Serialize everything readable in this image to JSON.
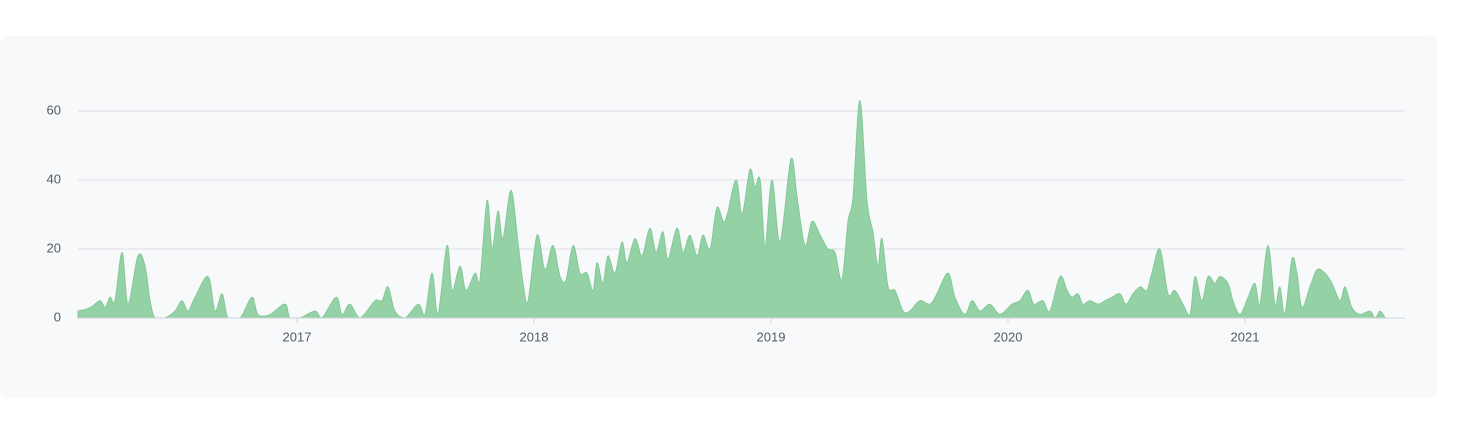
{
  "chart_data": {
    "type": "area",
    "color": "#94d2a5",
    "x": [
      2016.076,
      2016.127,
      2016.169,
      2016.19,
      2016.211,
      2016.232,
      2016.262,
      2016.287,
      2016.329,
      2016.359,
      2016.38,
      2016.401,
      2016.443,
      2016.485,
      2016.515,
      2016.54,
      2016.57,
      2016.625,
      2016.654,
      2016.684,
      2016.709,
      2016.76,
      2016.81,
      2016.835,
      2016.886,
      2016.949,
      2016.97,
      2017.013,
      2017.076,
      2017.105,
      2017.165,
      2017.19,
      2017.224,
      2017.266,
      2017.329,
      2017.359,
      2017.384,
      2017.413,
      2017.456,
      2017.511,
      2017.54,
      2017.57,
      2017.595,
      2017.633,
      2017.654,
      2017.688,
      2017.713,
      2017.751,
      2017.772,
      2017.802,
      2017.823,
      2017.848,
      2017.869,
      2017.903,
      2017.932,
      2017.954,
      2017.975,
      2018.013,
      2018.046,
      2018.08,
      2018.11,
      2018.135,
      2018.165,
      2018.194,
      2018.224,
      2018.249,
      2018.266,
      2018.291,
      2018.312,
      2018.342,
      2018.371,
      2018.392,
      2018.426,
      2018.456,
      2018.489,
      2018.515,
      2018.544,
      2018.565,
      2018.603,
      2018.629,
      2018.658,
      2018.688,
      2018.713,
      2018.743,
      2018.772,
      2018.806,
      2018.852,
      2018.878,
      2018.911,
      2018.932,
      2018.954,
      2018.975,
      2019.004,
      2019.038,
      2019.084,
      2019.11,
      2019.143,
      2019.173,
      2019.207,
      2019.24,
      2019.27,
      2019.299,
      2019.325,
      2019.346,
      2019.375,
      2019.405,
      2019.43,
      2019.451,
      2019.468,
      2019.494,
      2019.523,
      2019.557,
      2019.586,
      2019.628,
      2019.671,
      2019.7,
      2019.747,
      2019.776,
      2019.818,
      2019.848,
      2019.882,
      2019.924,
      2019.966,
      2020.017,
      2020.05,
      2020.084,
      2020.109,
      2020.147,
      2020.177,
      2020.219,
      2020.249,
      2020.27,
      2020.295,
      2020.316,
      2020.346,
      2020.38,
      2020.409,
      2020.439,
      2020.472,
      2020.498,
      2020.527,
      2020.557,
      2020.586,
      2020.607,
      2020.641,
      2020.675,
      2020.704,
      2020.738,
      2020.768,
      2020.789,
      2020.818,
      2020.844,
      2020.873,
      2020.894,
      2020.928,
      2020.949,
      2020.979,
      2021.013,
      2021.042,
      2021.063,
      2021.097,
      2021.126,
      2021.147,
      2021.168,
      2021.198,
      2021.219,
      2021.24,
      2021.274,
      2021.304,
      2021.337,
      2021.367,
      2021.401,
      2021.422,
      2021.451,
      2021.485,
      2021.527,
      2021.549,
      2021.57,
      2021.591
    ],
    "values": [
      2,
      3,
      5,
      3,
      6,
      5,
      19,
      4,
      18,
      15,
      5,
      0,
      0,
      2,
      5,
      2,
      6,
      12,
      2,
      7,
      0,
      0,
      6,
      1,
      1,
      4,
      0,
      0,
      2,
      0,
      6,
      1,
      4,
      0,
      5,
      5,
      9,
      2,
      0,
      4,
      1,
      13,
      1,
      21,
      8,
      15,
      8,
      13,
      11,
      34,
      20,
      31,
      23,
      37,
      22,
      10,
      5,
      24,
      14,
      21,
      12,
      11,
      21,
      13,
      13,
      8,
      16,
      10,
      18,
      13,
      22,
      16,
      23,
      18,
      26,
      19,
      25,
      17,
      26,
      19,
      24,
      18,
      24,
      20,
      32,
      28,
      40,
      30,
      43,
      38,
      40,
      21,
      40,
      22,
      46,
      35,
      21,
      28,
      24,
      20,
      19,
      11,
      28,
      35,
      63,
      34,
      25,
      15,
      23,
      9,
      8,
      2,
      2,
      5,
      4,
      7,
      13,
      6,
      1,
      5,
      2,
      4,
      1,
      4,
      5,
      8,
      4,
      5,
      2,
      12,
      8,
      6,
      7,
      4,
      5,
      4,
      5,
      6,
      7,
      4,
      7,
      9,
      8,
      13,
      20,
      7,
      8,
      4,
      1,
      12,
      5,
      12,
      10,
      12,
      10,
      5,
      1,
      6,
      10,
      4,
      21,
      4,
      9,
      1,
      17,
      13,
      3,
      9,
      14,
      13,
      10,
      5,
      9,
      3,
      1,
      2,
      0,
      2,
      0
    ],
    "xlim": [
      2016.076,
      2021.675
    ],
    "xticks": [
      2017,
      2018,
      2019,
      2020,
      2021
    ],
    "ylim": [
      0,
      70
    ],
    "yticks": [
      0,
      20,
      40,
      60
    ],
    "grid": true
  }
}
